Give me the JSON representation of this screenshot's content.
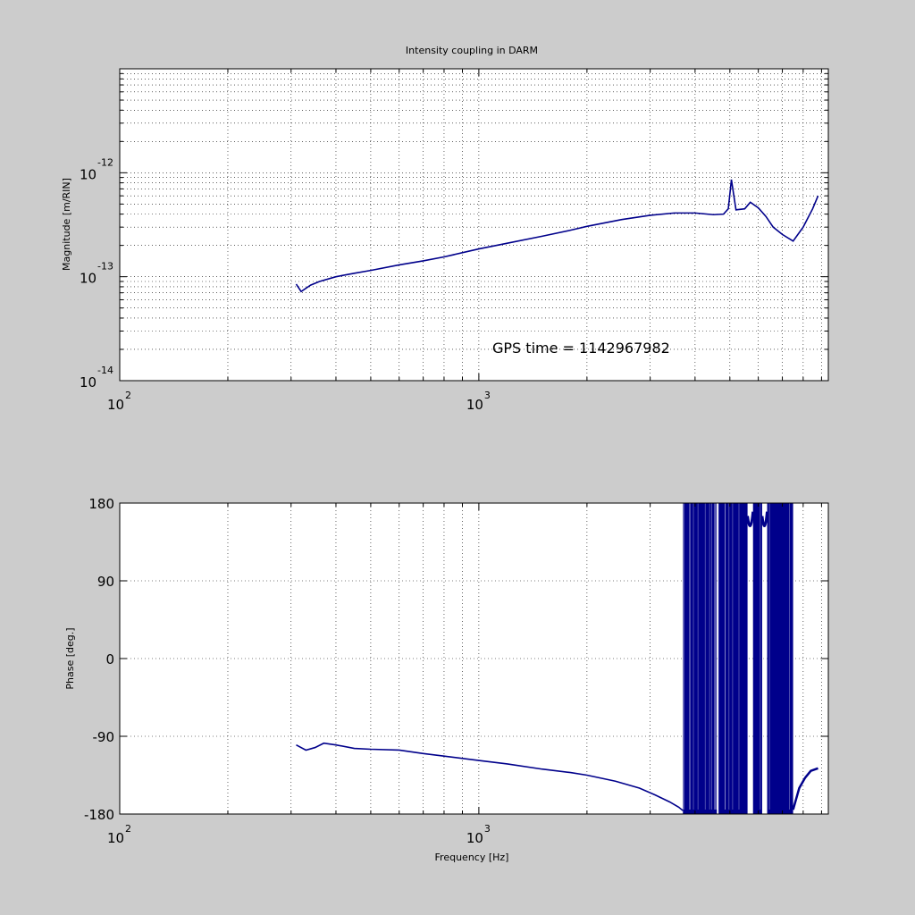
{
  "chart_data": [
    {
      "type": "line",
      "title": "Intensity coupling in DARM",
      "xlabel": "",
      "ylabel": "Magnitude [m/RIN]",
      "xscale": "log",
      "yscale": "log",
      "xlim": [
        100,
        9400
      ],
      "ylim": [
        1e-14,
        1e-11
      ],
      "grid": true,
      "x_ticks": [
        {
          "base": "10",
          "exp": "2"
        },
        {
          "base": "10",
          "exp": "3"
        }
      ],
      "y_ticks": [
        {
          "base": "10",
          "exp": "-14"
        },
        {
          "base": "10",
          "exp": "-13"
        },
        {
          "base": "10",
          "exp": "-12"
        }
      ],
      "annotation": "GPS time = 1142967982",
      "series": [
        {
          "color": "#00008b",
          "x": [
            310,
            320,
            340,
            360,
            400,
            450,
            500,
            600,
            700,
            800,
            1000,
            1200,
            1500,
            1800,
            2000,
            2500,
            3000,
            3500,
            4000,
            4500,
            4800,
            4950,
            5050,
            5200,
            5500,
            5700,
            6000,
            6300,
            6600,
            7000,
            7500,
            8000,
            8500,
            8800
          ],
          "y": [
            8.5e-14,
            7.2e-14,
            8.3e-14,
            9e-14,
            1e-13,
            1.08e-13,
            1.15e-13,
            1.3e-13,
            1.42e-13,
            1.55e-13,
            1.85e-13,
            2.1e-13,
            2.45e-13,
            2.8e-13,
            3.05e-13,
            3.55e-13,
            3.9e-13,
            4.1e-13,
            4.1e-13,
            3.95e-13,
            4e-13,
            4.5e-13,
            8.6e-13,
            4.4e-13,
            4.5e-13,
            5.2e-13,
            4.6e-13,
            3.8e-13,
            3e-13,
            2.55e-13,
            2.2e-13,
            3e-13,
            4.5e-13,
            6e-13
          ]
        }
      ]
    },
    {
      "type": "line",
      "title": "",
      "xlabel": "Frequency [Hz]",
      "ylabel": "Phase [deg.]",
      "xscale": "log",
      "xlim": [
        100,
        9400
      ],
      "ylim": [
        -180,
        180
      ],
      "grid": true,
      "x_ticks": [
        {
          "base": "10",
          "exp": "2"
        },
        {
          "base": "10",
          "exp": "3"
        }
      ],
      "y_ticks": [
        "-180",
        "-90",
        "0",
        "90",
        "180"
      ],
      "series": [
        {
          "color": "#00008b",
          "x": [
            310,
            330,
            350,
            370,
            400,
            450,
            500,
            600,
            700,
            800,
            1000,
            1200,
            1500,
            1800,
            2000,
            2400,
            2800,
            3100,
            3400,
            3600,
            3700
          ],
          "y": [
            -100,
            -106,
            -103,
            -98,
            -100,
            -104,
            -105,
            -106,
            -110,
            -113,
            -118,
            -122,
            -128,
            -132,
            -135,
            -142,
            -150,
            -158,
            -166,
            -172,
            -176
          ]
        }
      ],
      "wrapped_region": {
        "x_start": 3700,
        "x_end": 7500
      },
      "tail": {
        "x": [
          7500,
          7800,
          8100,
          8400,
          8800
        ],
        "y": [
          -175,
          -150,
          -138,
          -130,
          -127
        ]
      }
    }
  ]
}
